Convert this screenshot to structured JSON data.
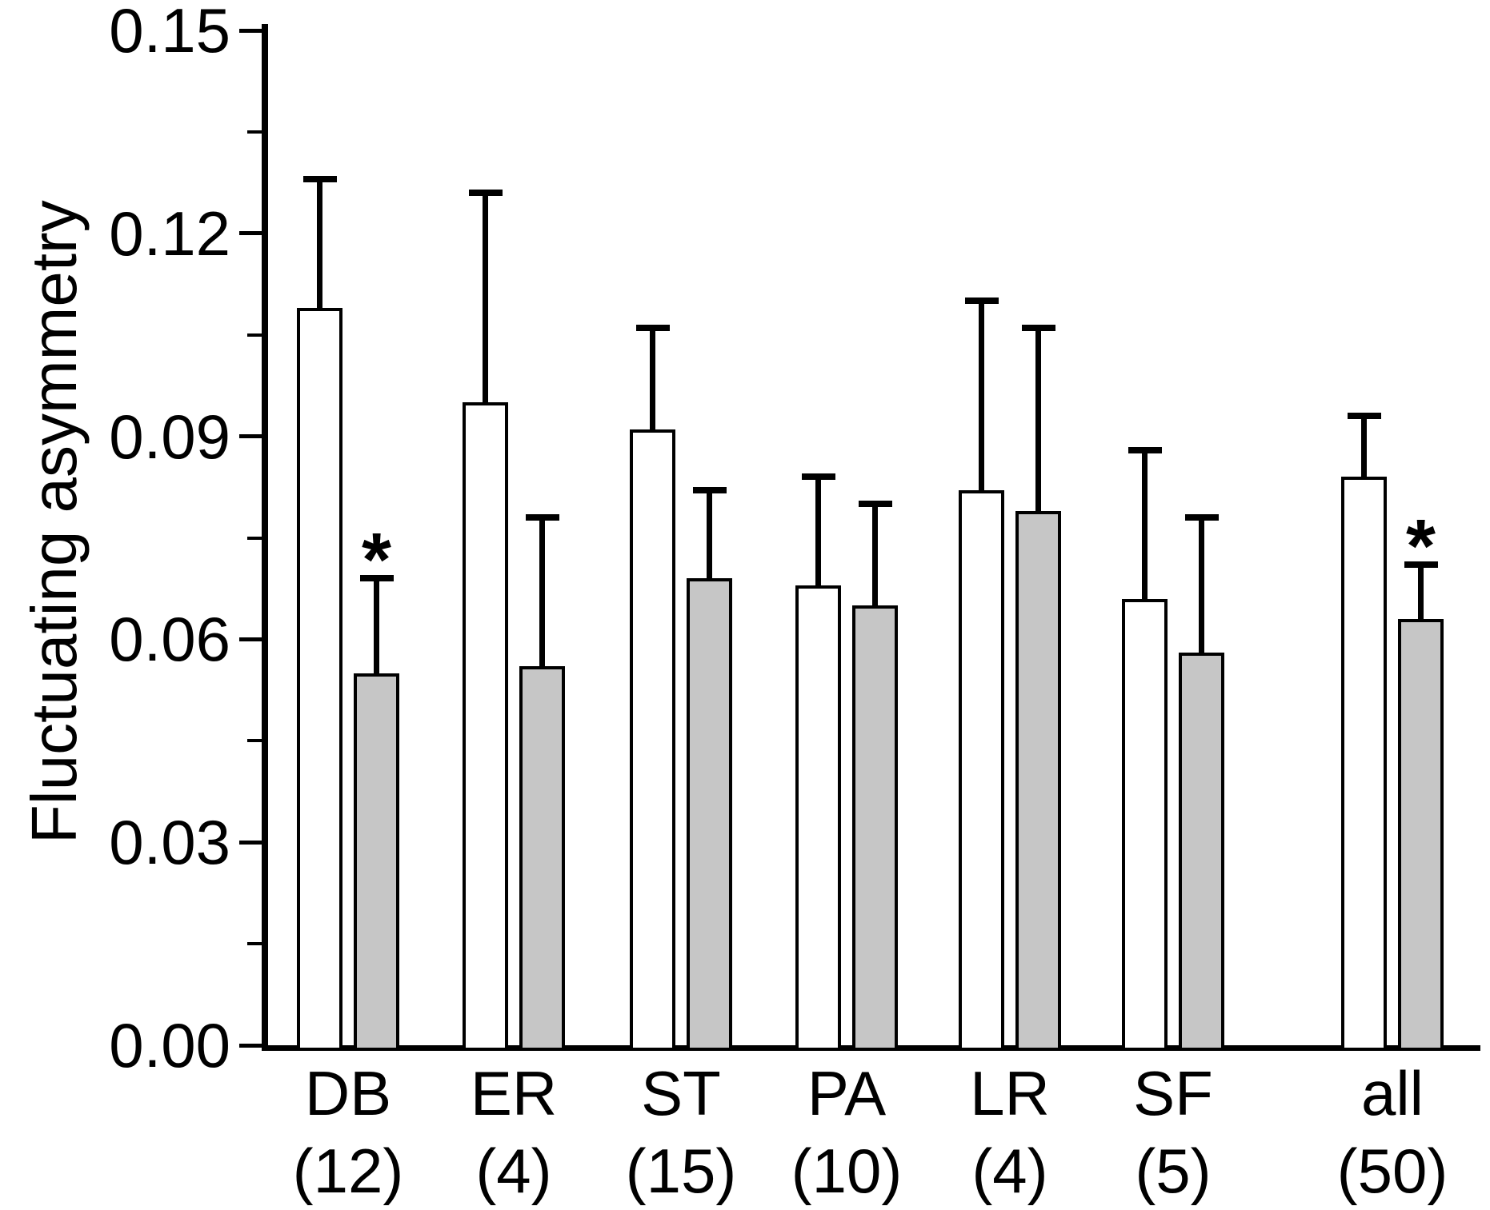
{
  "figure": {
    "background": "#ffffff",
    "ink_color": "#000000",
    "significance_marker": "*"
  },
  "chart_data": {
    "type": "bar",
    "title": "",
    "xlabel": "",
    "ylabel": "Fluctuating asymmetry",
    "ylim": [
      0,
      0.15
    ],
    "yticks": [
      0,
      0.03,
      0.06,
      0.09,
      0.12,
      0.15
    ],
    "ytick_labels": [
      "0.00",
      "0.03",
      "0.06",
      "0.09",
      "0.12",
      "0.15"
    ],
    "minor_yticks": [
      0.015,
      0.045,
      0.075,
      0.105,
      0.135
    ],
    "grid": false,
    "legend": "none",
    "error_bars": "upper only, capped",
    "categories": [
      "DB",
      "ER",
      "ST",
      "PA",
      "LR",
      "SF",
      "all"
    ],
    "sample_sizes": [
      "(12)",
      "(4)",
      "(15)",
      "(10)",
      "(4)",
      "(5)",
      "(50)"
    ],
    "series": [
      {
        "name": "white",
        "fill": "#ffffff",
        "values": [
          0.109,
          0.095,
          0.091,
          0.068,
          0.082,
          0.066,
          0.084
        ],
        "errors_plus": [
          0.019,
          0.031,
          0.015,
          0.016,
          0.028,
          0.022,
          0.009
        ],
        "significant": [
          false,
          false,
          false,
          false,
          false,
          false,
          false
        ]
      },
      {
        "name": "gray",
        "fill": "#c6c6c6",
        "values": [
          0.055,
          0.056,
          0.069,
          0.065,
          0.079,
          0.058,
          0.063
        ],
        "errors_plus": [
          0.014,
          0.022,
          0.013,
          0.015,
          0.027,
          0.02,
          0.008
        ],
        "significant": [
          true,
          false,
          false,
          false,
          false,
          false,
          true
        ]
      }
    ],
    "last_group_separated": true
  }
}
